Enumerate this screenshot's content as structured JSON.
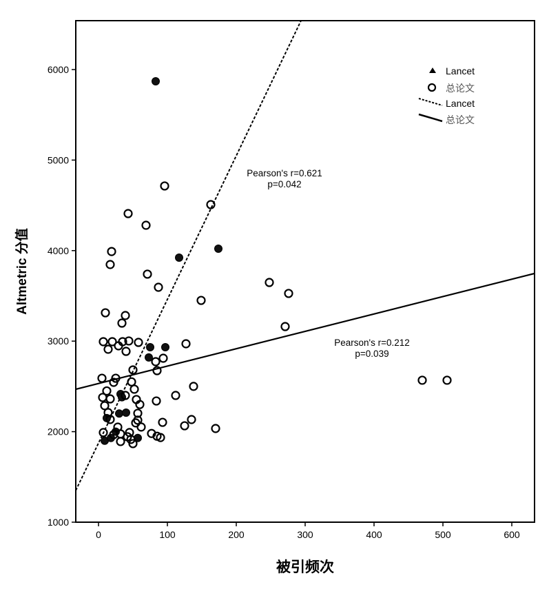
{
  "chart_data": {
    "type": "scatter",
    "title": "",
    "xlabel": "被引频次",
    "ylabel": "Altmetric 分值",
    "xlim": [
      -33,
      633
    ],
    "ylim": [
      1000,
      6540
    ],
    "xticks": [
      "0",
      "100",
      "200",
      "300",
      "400",
      "500",
      "600"
    ],
    "xtick_values": [
      0,
      100,
      200,
      300,
      400,
      500,
      600
    ],
    "yticks": [
      "1000",
      "2000",
      "3000",
      "4000",
      "5000",
      "6000"
    ],
    "ytick_values": [
      1000,
      2000,
      3000,
      4000,
      5000,
      6000
    ],
    "grid": false,
    "legend_position": "top-right",
    "legend": [
      {
        "label": "Lancet",
        "kind": "filled-marker"
      },
      {
        "label": "总论文",
        "kind": "open-marker"
      },
      {
        "label": "Lancet",
        "kind": "dashed-line"
      },
      {
        "label": "总论文",
        "kind": "solid-line"
      }
    ],
    "series": [
      {
        "name": "Lancet",
        "marker": "filled",
        "points": [
          [
            83,
            5870
          ],
          [
            117,
            3922
          ],
          [
            174,
            4021
          ],
          [
            97,
            2933
          ],
          [
            75,
            2933
          ],
          [
            73,
            2820
          ],
          [
            32,
            2415
          ],
          [
            34,
            2380
          ],
          [
            30,
            2200
          ],
          [
            9,
            1900
          ],
          [
            57,
            1930
          ],
          [
            12,
            2150
          ],
          [
            25,
            2000
          ],
          [
            40,
            2210
          ],
          [
            18,
            1930
          ]
        ]
      },
      {
        "name": "总论文",
        "marker": "open",
        "points": [
          [
            96,
            4714
          ],
          [
            43,
            4409
          ],
          [
            69,
            4280
          ],
          [
            163,
            4508
          ],
          [
            19,
            3990
          ],
          [
            17,
            3846
          ],
          [
            71,
            3740
          ],
          [
            87,
            3595
          ],
          [
            248,
            3648
          ],
          [
            276,
            3527
          ],
          [
            149,
            3450
          ],
          [
            271,
            3161
          ],
          [
            10,
            3313
          ],
          [
            39,
            3283
          ],
          [
            34,
            3199
          ],
          [
            470,
            2568
          ],
          [
            506,
            2568
          ],
          [
            127,
            2971
          ],
          [
            112,
            2400
          ],
          [
            138,
            2500
          ],
          [
            135,
            2134
          ],
          [
            125,
            2065
          ],
          [
            170,
            2035
          ],
          [
            93,
            2103
          ],
          [
            84,
            2339
          ],
          [
            85,
            2674
          ],
          [
            94,
            2811
          ],
          [
            83,
            2773
          ],
          [
            7,
            2994
          ],
          [
            20,
            2994
          ],
          [
            35,
            2994
          ],
          [
            44,
            3002
          ],
          [
            58,
            2986
          ],
          [
            29,
            2948
          ],
          [
            14,
            2910
          ],
          [
            40,
            2887
          ],
          [
            5,
            2590
          ],
          [
            22,
            2545
          ],
          [
            6,
            2378
          ],
          [
            9,
            2287
          ],
          [
            14,
            2211
          ],
          [
            17,
            2135
          ],
          [
            7,
            1990
          ],
          [
            22,
            1967
          ],
          [
            32,
            1891
          ],
          [
            47,
            1914
          ],
          [
            25,
            2590
          ],
          [
            50,
            2682
          ],
          [
            52,
            2469
          ],
          [
            55,
            2355
          ],
          [
            57,
            2203
          ],
          [
            54,
            2097
          ],
          [
            50,
            1868
          ],
          [
            42,
            1944
          ],
          [
            32,
            1975
          ],
          [
            17,
            2362
          ],
          [
            39,
            2400
          ],
          [
            57,
            2127
          ],
          [
            62,
            2051
          ],
          [
            45,
            1990
          ],
          [
            77,
            1980
          ],
          [
            90,
            1935
          ],
          [
            85,
            1950
          ],
          [
            12,
            2450
          ],
          [
            28,
            2050
          ],
          [
            60,
            2300
          ],
          [
            48,
            2550
          ]
        ]
      }
    ],
    "fit_lines": [
      {
        "name": "Lancet",
        "style": "dashed",
        "intercept": 1874,
        "slope": 15.87,
        "annotation": [
          "Pearson's r=0.621",
          "p=0.042"
        ],
        "annotation_at": [
          270,
          4820
        ]
      },
      {
        "name": "总论文",
        "style": "solid",
        "intercept": 2532,
        "slope": 1.92,
        "annotation": [
          "Pearson's r=0.212",
          "p=0.039"
        ],
        "annotation_at": [
          397,
          2950
        ]
      }
    ]
  }
}
